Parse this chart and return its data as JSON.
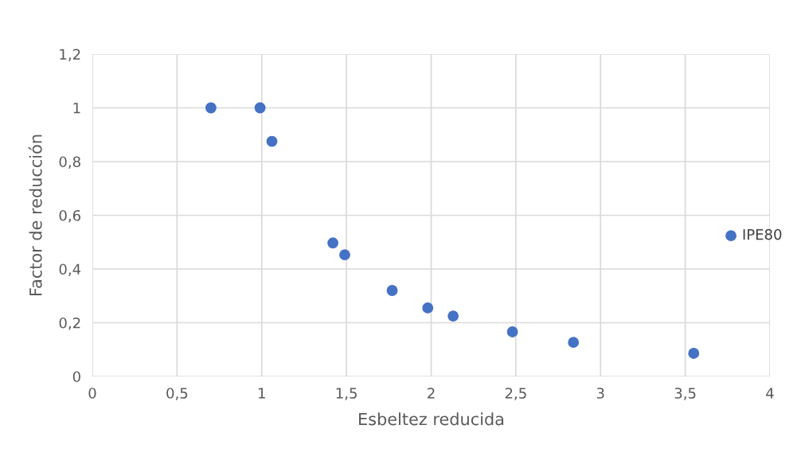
{
  "chart_data": {
    "type": "scatter",
    "xlabel": "Esbeltez reducida",
    "ylabel": "Factor de reducción",
    "x": [
      0.7,
      0.99,
      1.06,
      1.42,
      1.49,
      1.77,
      1.98,
      2.13,
      2.48,
      2.84,
      3.55,
      3.77
    ],
    "series": [
      {
        "color": "#4472c4",
        "values": [
          1.0,
          1.0,
          0.875,
          0.497,
          0.453,
          0.32,
          0.255,
          0.225,
          0.166,
          0.127,
          0.086,
          0.524
        ]
      }
    ],
    "xlim": [
      0,
      4
    ],
    "ylim": [
      0,
      1.2
    ],
    "xticks": [
      0,
      {
        "value": 0.5,
        "label": "0,5"
      },
      1,
      {
        "value": 1.5,
        "label": "1,5"
      },
      2,
      {
        "value": 2.5,
        "label": "2,5"
      },
      3,
      {
        "value": 3.5,
        "label": "3,5"
      },
      4
    ],
    "yticks": [
      0,
      {
        "value": 0.2,
        "label": "0,2"
      },
      {
        "value": 0.4,
        "label": "0,4"
      },
      {
        "value": 0.6,
        "label": "0,6"
      },
      {
        "value": 0.8,
        "label": "0,8"
      },
      1,
      {
        "value": 1.2,
        "label": "1,2"
      }
    ],
    "annotations": [
      {
        "text": "IPE80",
        "x": 3.77,
        "y": 0.524
      }
    ],
    "grid": true,
    "marker": "circle"
  }
}
